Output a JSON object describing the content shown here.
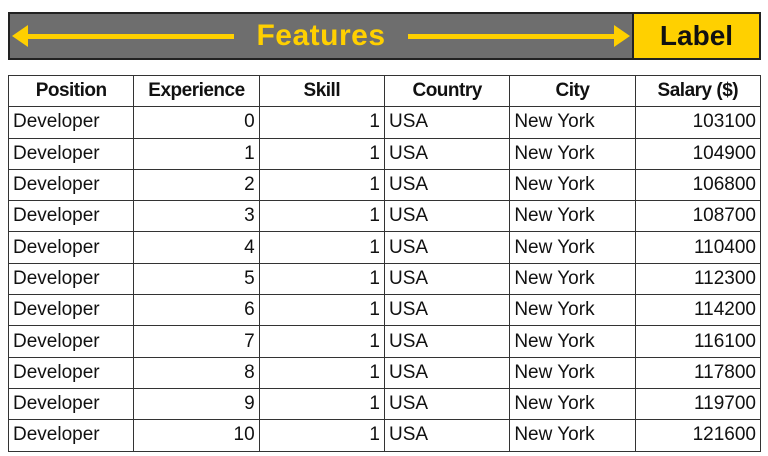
{
  "banner": {
    "features_label": "Features",
    "label_label": "Label",
    "colors": {
      "banner_bg": "#6e6e6e",
      "accent": "#ffd000"
    }
  },
  "table": {
    "columns": [
      "Position",
      "Experience",
      "Skill",
      "Country",
      "City",
      "Salary ($)"
    ],
    "rows": [
      [
        "Developer",
        "0",
        "1",
        "USA",
        "New York",
        "103100"
      ],
      [
        "Developer",
        "1",
        "1",
        "USA",
        "New York",
        "104900"
      ],
      [
        "Developer",
        "2",
        "1",
        "USA",
        "New York",
        "106800"
      ],
      [
        "Developer",
        "3",
        "1",
        "USA",
        "New York",
        "108700"
      ],
      [
        "Developer",
        "4",
        "1",
        "USA",
        "New York",
        "110400"
      ],
      [
        "Developer",
        "5",
        "1",
        "USA",
        "New York",
        "112300"
      ],
      [
        "Developer",
        "6",
        "1",
        "USA",
        "New York",
        "114200"
      ],
      [
        "Developer",
        "7",
        "1",
        "USA",
        "New York",
        "116100"
      ],
      [
        "Developer",
        "8",
        "1",
        "USA",
        "New York",
        "117800"
      ],
      [
        "Developer",
        "9",
        "1",
        "USA",
        "New York",
        "119700"
      ],
      [
        "Developer",
        "10",
        "1",
        "USA",
        "New York",
        "121600"
      ]
    ]
  }
}
